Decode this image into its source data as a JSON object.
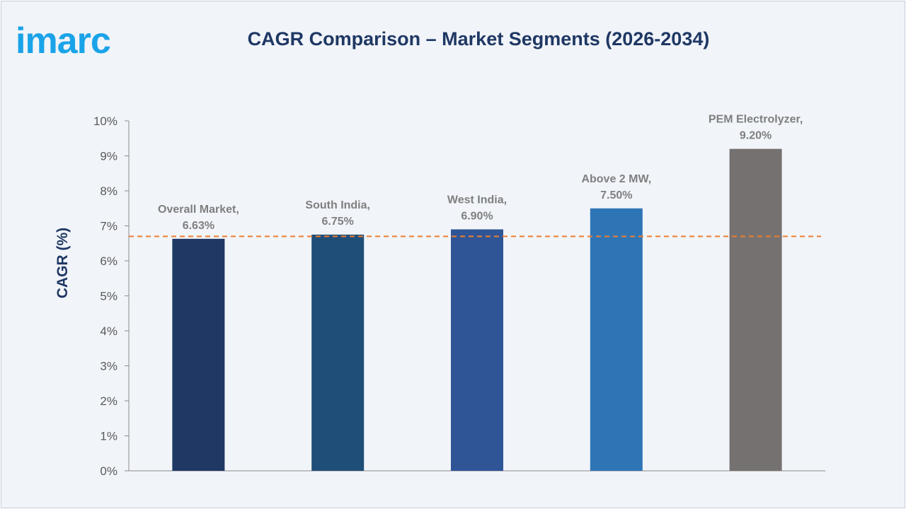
{
  "logo": {
    "text": "imarc",
    "color": "#1aa3e8"
  },
  "chart_data": {
    "type": "bar",
    "title": "CAGR Comparison – Market Segments (2026-2034)",
    "ylabel": "CAGR (%)",
    "xlabel": "",
    "ylim": [
      0,
      10
    ],
    "yticks": [
      "0%",
      "1%",
      "2%",
      "3%",
      "4%",
      "5%",
      "6%",
      "7%",
      "8%",
      "9%",
      "10%"
    ],
    "categories": [
      "Overall Market",
      "South India",
      "West India",
      "Above 2 MW",
      "PEM Electrolyzer"
    ],
    "values": [
      6.63,
      6.75,
      6.9,
      7.5,
      9.2
    ],
    "data_labels": [
      [
        "Overall Market,",
        "6.63%"
      ],
      [
        "South India,",
        "6.75%"
      ],
      [
        "West India,",
        "6.90%"
      ],
      [
        "Above 2 MW,",
        "7.50%"
      ],
      [
        "PEM Electrolyzer,",
        "9.20%"
      ]
    ],
    "bar_colors": [
      "#203864",
      "#1f4e79",
      "#2f5597",
      "#2e75b6",
      "#767171"
    ],
    "reference_line": {
      "value": 6.7,
      "style": "dashed",
      "color": "#ed7d31"
    },
    "grid": false,
    "legend": "none"
  }
}
